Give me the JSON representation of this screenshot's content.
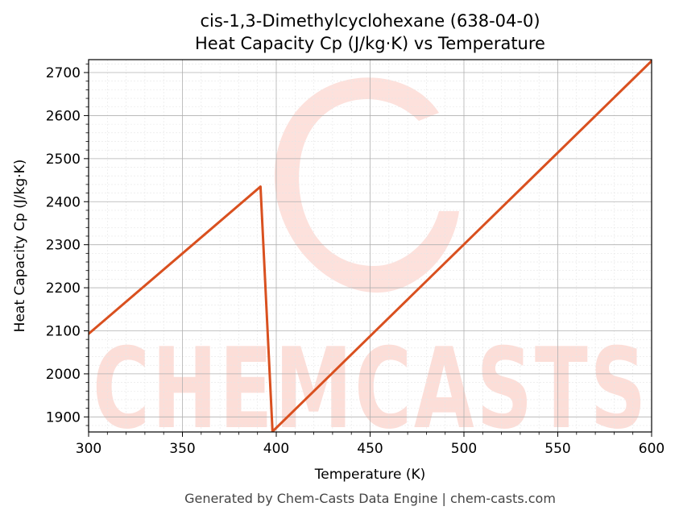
{
  "chart_data": {
    "type": "line",
    "title": "cis-1,3-Dimethylcyclohexane (638-04-0)",
    "subtitle": "Heat Capacity Cp (J/kg·K) vs Temperature",
    "xlabel": "Temperature (K)",
    "ylabel": "Heat Capacity Cp (J/kg·K)",
    "xlim": [
      300,
      600
    ],
    "ylim": [
      1865,
      2730
    ],
    "x_ticks": [
      "300",
      "350",
      "400",
      "450",
      "500",
      "550",
      "600"
    ],
    "y_ticks": [
      "1900",
      "2000",
      "2100",
      "2200",
      "2300",
      "2400",
      "2500",
      "2600",
      "2700"
    ],
    "grid": true,
    "series": [
      {
        "color": "#d9501f",
        "x": [
          300,
          391.6,
          398.0,
          600
        ],
        "y": [
          2093,
          2435,
          1866,
          2727
        ]
      }
    ],
    "footer": "Generated by Chem-Casts Data Engine | chem-casts.com",
    "watermark": "CHEMCASTS"
  }
}
